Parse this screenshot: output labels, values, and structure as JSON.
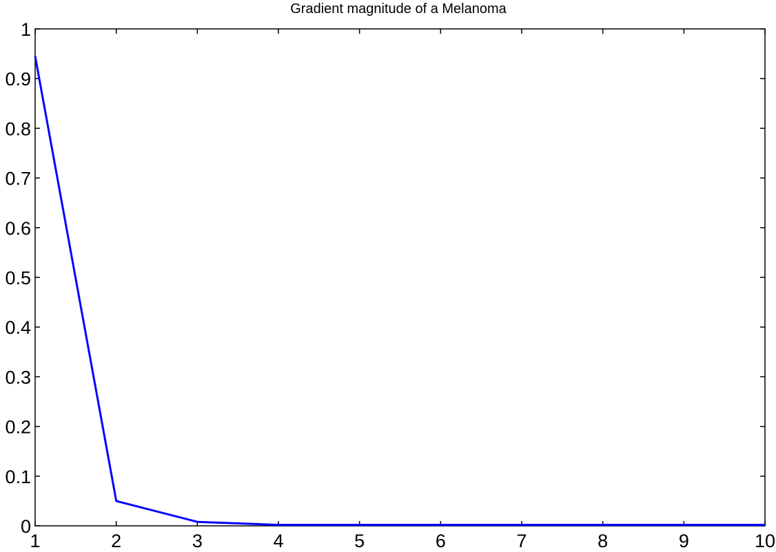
{
  "chart_data": {
    "type": "line",
    "title": "Gradient magnitude of a Melanoma",
    "xlabel": "",
    "ylabel": "",
    "xlim": [
      1,
      10
    ],
    "ylim": [
      0,
      1
    ],
    "x_ticks": [
      "1",
      "2",
      "3",
      "4",
      "5",
      "6",
      "7",
      "8",
      "9",
      "10"
    ],
    "y_ticks": [
      "0",
      "0.1",
      "0.2",
      "0.3",
      "0.4",
      "0.5",
      "0.6",
      "0.7",
      "0.8",
      "0.9",
      "1"
    ],
    "grid": false,
    "legend": "none",
    "series": [
      {
        "x": [
          1,
          2,
          3,
          4,
          5,
          6,
          7,
          8,
          9,
          10
        ],
        "values": [
          0.945,
          0.05,
          0.008,
          0.002,
          0.002,
          0.002,
          0.002,
          0.002,
          0.002,
          0.002
        ],
        "color": "#0000ff"
      }
    ]
  }
}
